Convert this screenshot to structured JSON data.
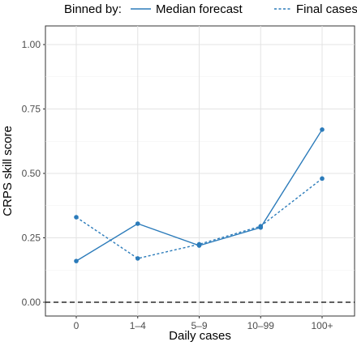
{
  "chart_data": {
    "type": "line",
    "title": "",
    "xlabel": "Daily cases",
    "ylabel": "CRPS skill score",
    "categories": [
      "0",
      "1–4",
      "5–9",
      "10–99",
      "100+"
    ],
    "ylim": [
      0,
      1
    ],
    "yticks": [
      "0.00",
      "0.25",
      "0.50",
      "0.75",
      "1.00"
    ],
    "grid": true,
    "legend_title": "Binned by:",
    "legend_position": "top",
    "reference_line": {
      "y": 0,
      "style": "dashed"
    },
    "series": [
      {
        "name": "Median forecast",
        "line_style": "solid",
        "color": "#2b7bba",
        "values": [
          0.16,
          0.305,
          0.22,
          0.29,
          0.67
        ]
      },
      {
        "name": "Final cases",
        "line_style": "dashed",
        "color": "#2b7bba",
        "values": [
          0.33,
          0.17,
          0.225,
          0.295,
          0.48
        ]
      }
    ]
  }
}
